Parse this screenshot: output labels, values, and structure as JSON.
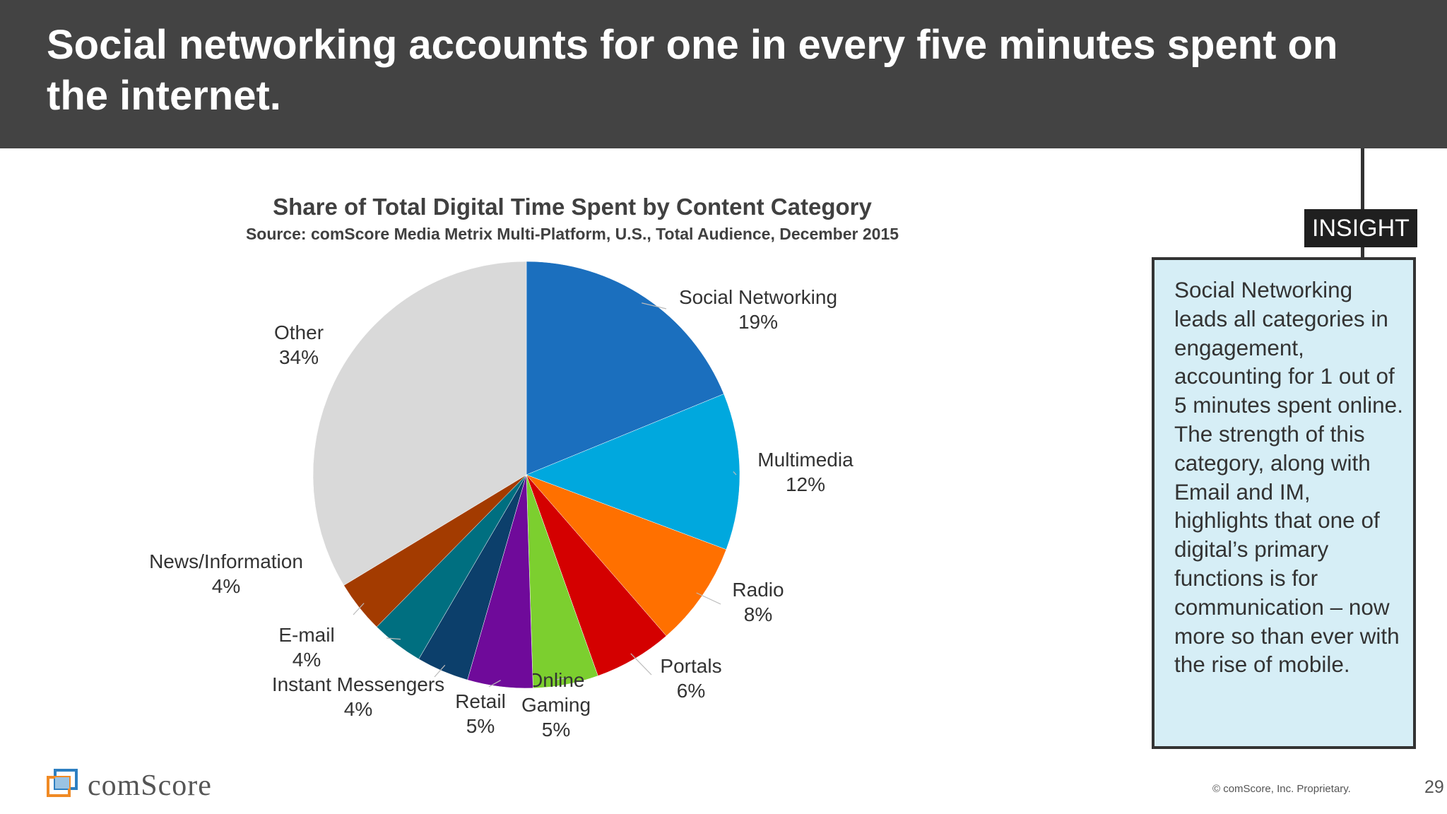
{
  "header": {
    "title": "Social networking accounts for one in every five minutes spent on the internet."
  },
  "chart_data": {
    "type": "pie",
    "title": "Share of Total Digital Time Spent by Content Category",
    "subtitle": "Source: comScore Media Metrix Multi-Platform, U.S., Total Audience, December 2015",
    "start": "12 o'clock",
    "direction": "clockwise",
    "slices": [
      {
        "label": "Social Networking",
        "value": 19,
        "value_label": "19%",
        "color": "#1b6fbe"
      },
      {
        "label": "Multimedia",
        "value": 12,
        "value_label": "12%",
        "color": "#00a8de"
      },
      {
        "label": "Radio",
        "value": 8,
        "value_label": "8%",
        "color": "#ff7000"
      },
      {
        "label": "Portals",
        "value": 6,
        "value_label": "6%",
        "color": "#d40000"
      },
      {
        "label": "Online Gaming",
        "value": 5,
        "value_label": "5%",
        "color": "#7ccf2f"
      },
      {
        "label": "Retail",
        "value": 5,
        "value_label": "5%",
        "color": "#6f0a9a"
      },
      {
        "label": "Instant Messengers",
        "value": 4,
        "value_label": "4%",
        "color": "#0c3f6b"
      },
      {
        "label": "E-mail",
        "value": 4,
        "value_label": "4%",
        "color": "#006f80"
      },
      {
        "label": "News/Information",
        "value": 4,
        "value_label": "4%",
        "color": "#a33b00"
      },
      {
        "label": "Other",
        "value": 34,
        "value_label": "34%",
        "color": "#d9d9d9"
      }
    ]
  },
  "insight": {
    "tag": "INSIGHT",
    "text": "Social Networking leads all categories in engagement, accounting for 1 out of 5 minutes spent online. The strength of this category, along with Email and IM, highlights that one of digital’s primary functions is for communication – now more so than ever with the rise of mobile."
  },
  "footer": {
    "logo_text": "comScore",
    "copyright": "© comScore, Inc. Proprietary.",
    "page_number": "29"
  }
}
